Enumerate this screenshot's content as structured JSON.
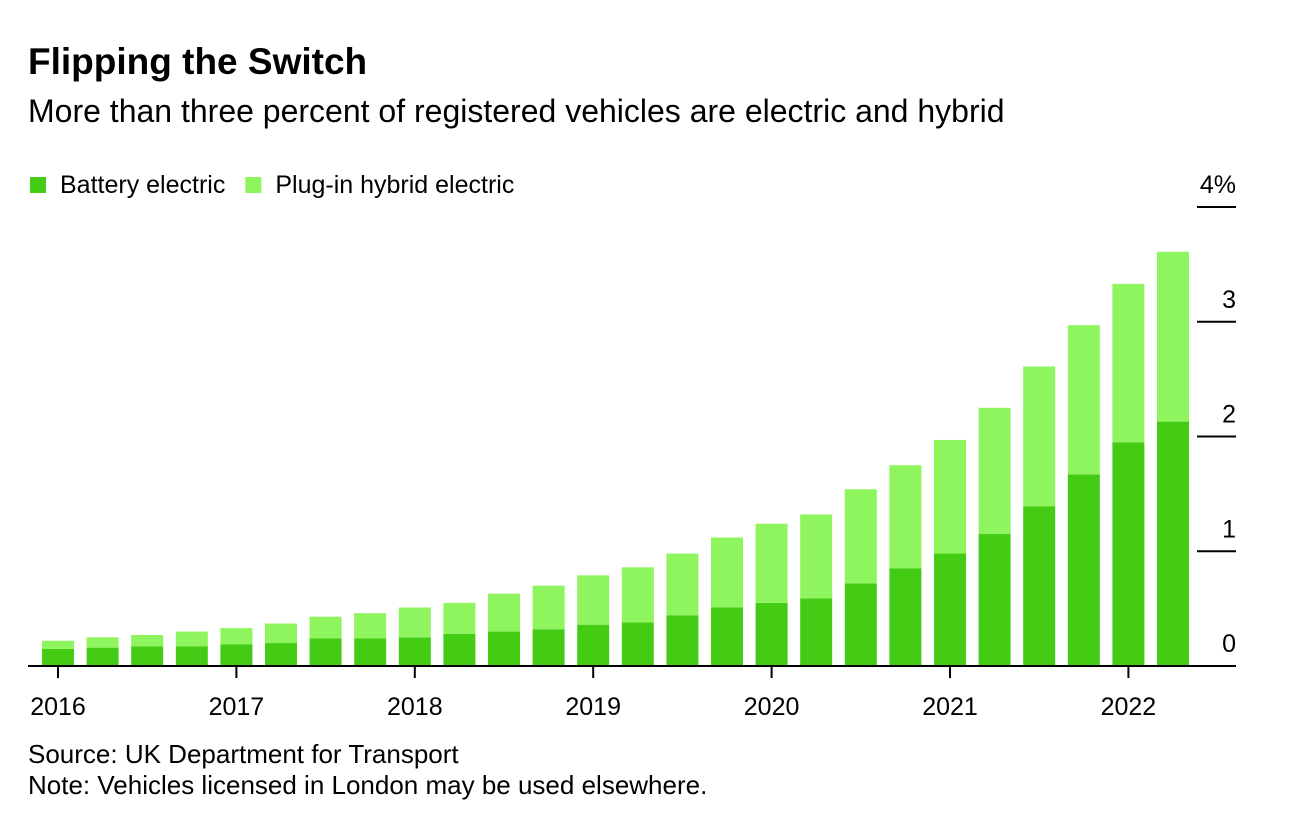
{
  "chart_data": {
    "type": "stacked_bar",
    "title": "Flipping the Switch",
    "subtitle": "More than three percent of registered vehicles are electric and hybrid",
    "source": "Source: UK Department for Transport",
    "note": "Note: Vehicles licensed in London may be used elsewhere.",
    "categories": [
      "2016",
      null,
      null,
      null,
      "2017",
      null,
      null,
      null,
      "2018",
      null,
      null,
      null,
      "2019",
      null,
      null,
      null,
      "2020",
      null,
      null,
      null,
      "2021",
      null,
      null,
      null,
      "2022",
      null
    ],
    "series": [
      {
        "name": "Battery electric",
        "color": "#44cc14",
        "values": [
          0.15,
          0.16,
          0.17,
          0.17,
          0.19,
          0.2,
          0.24,
          0.24,
          0.25,
          0.28,
          0.3,
          0.32,
          0.36,
          0.38,
          0.44,
          0.51,
          0.55,
          0.59,
          0.72,
          0.85,
          0.98,
          1.15,
          1.39,
          1.67,
          1.95,
          2.13
        ]
      },
      {
        "name": "Plug-in hybrid electric",
        "color": "#8ef55e",
        "values": [
          0.07,
          0.09,
          0.1,
          0.13,
          0.14,
          0.17,
          0.19,
          0.22,
          0.26,
          0.27,
          0.33,
          0.38,
          0.43,
          0.48,
          0.54,
          0.61,
          0.69,
          0.73,
          0.82,
          0.9,
          0.99,
          1.1,
          1.22,
          1.3,
          1.38,
          1.48
        ]
      }
    ],
    "ylim": [
      0,
      4
    ],
    "yticks": [
      0,
      1,
      2,
      3,
      {
        "value": 4,
        "label": "4%"
      }
    ],
    "y_axis_side": "right"
  }
}
